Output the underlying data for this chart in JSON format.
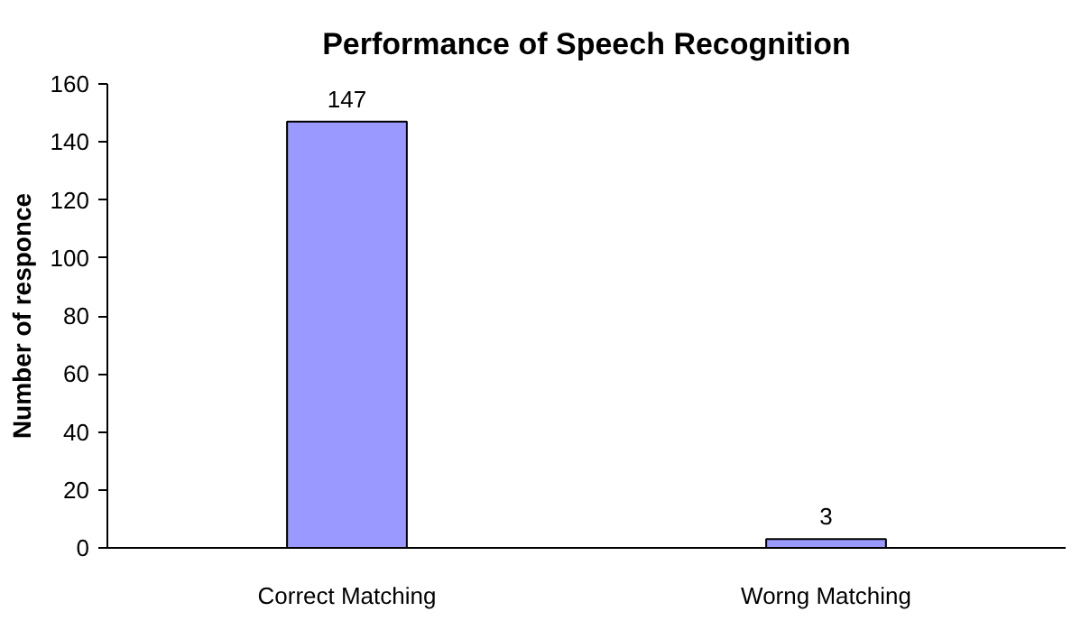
{
  "chart_data": {
    "type": "bar",
    "title": "Performance of Speech Recognition",
    "ylabel": "Number of responce",
    "categories": [
      "Correct Matching",
      "Worng Matching"
    ],
    "values": [
      147,
      3
    ],
    "color": "#9999ff",
    "data_labels": true,
    "ylim": [
      0,
      160
    ],
    "yticks": [
      0,
      20,
      40,
      60,
      80,
      100,
      120,
      140,
      160
    ],
    "grid": false
  }
}
